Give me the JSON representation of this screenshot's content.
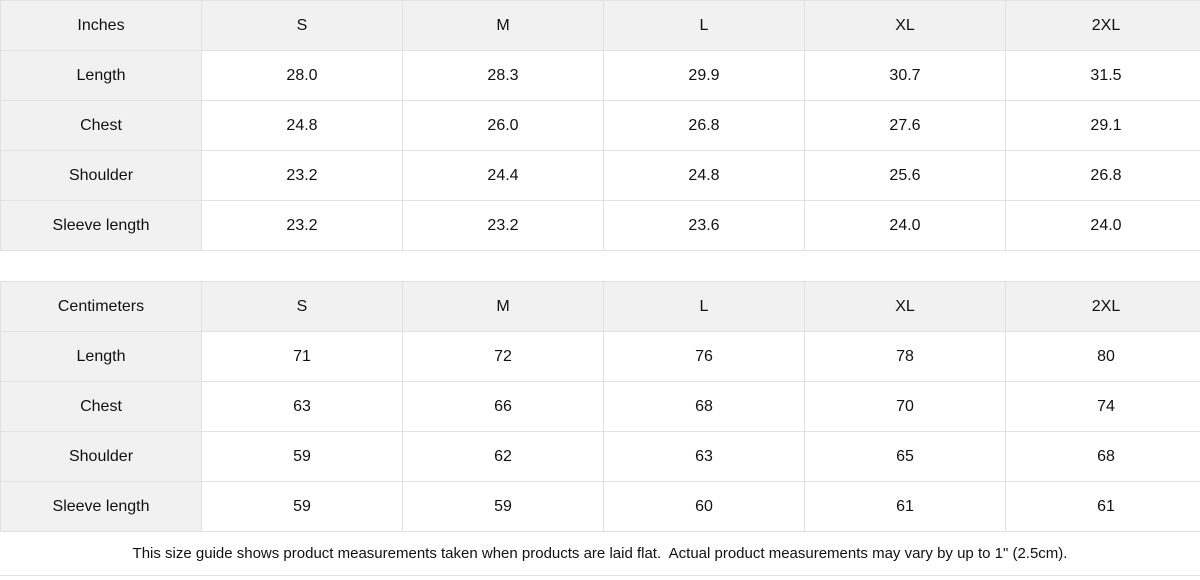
{
  "tables": [
    {
      "unit_label": "Inches",
      "sizes": [
        "S",
        "M",
        "L",
        "XL",
        "2XL"
      ],
      "rows": [
        {
          "label": "Length",
          "values": [
            "28.0",
            "28.3",
            "29.9",
            "30.7",
            "31.5"
          ]
        },
        {
          "label": "Chest",
          "values": [
            "24.8",
            "26.0",
            "26.8",
            "27.6",
            "29.1"
          ]
        },
        {
          "label": "Shoulder",
          "values": [
            "23.2",
            "24.4",
            "24.8",
            "25.6",
            "26.8"
          ]
        },
        {
          "label": "Sleeve length",
          "values": [
            "23.2",
            "23.2",
            "23.6",
            "24.0",
            "24.0"
          ]
        }
      ]
    },
    {
      "unit_label": "Centimeters",
      "sizes": [
        "S",
        "M",
        "L",
        "XL",
        "2XL"
      ],
      "rows": [
        {
          "label": "Length",
          "values": [
            "71",
            "72",
            "76",
            "78",
            "80"
          ]
        },
        {
          "label": "Chest",
          "values": [
            "63",
            "66",
            "68",
            "70",
            "74"
          ]
        },
        {
          "label": "Shoulder",
          "values": [
            "59",
            "62",
            "63",
            "65",
            "68"
          ]
        },
        {
          "label": "Sleeve length",
          "values": [
            "59",
            "59",
            "60",
            "61",
            "61"
          ]
        }
      ]
    }
  ],
  "footer": {
    "note": "This size guide shows product measurements taken when products are laid flat.  Actual product measurements may vary by up to 1\" (2.5cm)."
  },
  "colors": {
    "header_bg": "#f1f1f1",
    "border": "#e1e1e1",
    "text": "#111111",
    "cell_bg": "#ffffff"
  }
}
